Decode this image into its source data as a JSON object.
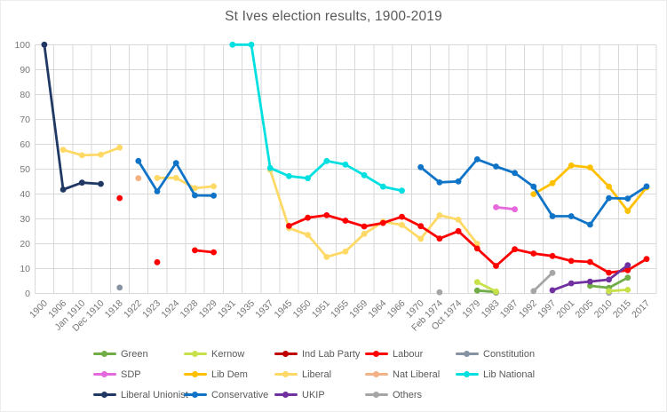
{
  "title": "St Ives election results, 1900-2019",
  "colors": {
    "background": "#FFFFFF",
    "grid": "#D9D9D9",
    "axis_label": "#767676",
    "title_text": "#595959",
    "legend_label": "#595959"
  },
  "chart_data": {
    "type": "line",
    "title": "St Ives election results, 1900-2019",
    "xlabel": "",
    "ylabel": "",
    "grid": true,
    "legend_position": "bottom",
    "marker": "circle",
    "y_axis": {
      "min": 0,
      "max": 100,
      "tick_step": 10,
      "ticks": [
        0,
        10,
        20,
        30,
        40,
        50,
        60,
        70,
        80,
        90,
        100
      ]
    },
    "x_categories": [
      "1900",
      "1906",
      "Jan 1910",
      "Dec 1910",
      "1918",
      "1922",
      "1923",
      "1924",
      "1928",
      "1929",
      "1931",
      "1935",
      "1937",
      "1945",
      "1950",
      "1951",
      "1955",
      "1959",
      "1964",
      "1966",
      "1970",
      "Feb 1974",
      "Oct 1974",
      "1979",
      "1983",
      "1987",
      "1992",
      "1997",
      "2001",
      "2005",
      "2010",
      "2015",
      "2017"
    ],
    "series": [
      {
        "name": "Constitution",
        "color": "#8793A3",
        "points": [
          [
            "1918",
            2.3
          ]
        ]
      },
      {
        "name": "Others",
        "color": "#A6A6A6",
        "points": [
          [
            "Feb 1974",
            0.4
          ],
          [
            "1983",
            0.2
          ],
          [
            "1992",
            0.9
          ],
          [
            "1997",
            8.2
          ],
          [
            "2010",
            0.2
          ]
        ]
      },
      {
        "name": "Nat Liberal",
        "color": "#F4B183",
        "points": [
          [
            "1922",
            46.3
          ]
        ]
      },
      {
        "name": "Ind Lab Party",
        "color": "#C00000",
        "points": []
      },
      {
        "name": "Liberal Unionist",
        "color": "#1F3864",
        "points": [
          [
            "1900",
            100
          ],
          [
            "1906",
            41.7
          ],
          [
            "Jan 1910",
            44.5
          ],
          [
            "Dec 1910",
            44.0
          ]
        ]
      },
      {
        "name": "Liberal",
        "color": "#FFD966",
        "points": [
          [
            "1906",
            57.7
          ],
          [
            "Jan 1910",
            55.5
          ],
          [
            "Dec 1910",
            55.8
          ],
          [
            "1918",
            58.6
          ],
          [
            "1923",
            46.4
          ],
          [
            "1924",
            46.4
          ],
          [
            "1928",
            42.3
          ],
          [
            "1929",
            43.0
          ],
          [
            "1937",
            49.6
          ],
          [
            "1945",
            26.2
          ],
          [
            "1950",
            23.5
          ],
          [
            "1951",
            14.6
          ],
          [
            "1955",
            16.8
          ],
          [
            "1959",
            23.9
          ],
          [
            "1964",
            28.8
          ],
          [
            "1966",
            27.5
          ],
          [
            "1970",
            21.9
          ],
          [
            "Feb 1974",
            31.4
          ],
          [
            "Oct 1974",
            29.6
          ],
          [
            "1979",
            19.9
          ]
        ]
      },
      {
        "name": "SDP",
        "color": "#E668DD",
        "points": [
          [
            "1983",
            34.6
          ],
          [
            "1987",
            33.8
          ]
        ]
      },
      {
        "name": "Lib Dem",
        "color": "#FFC000",
        "points": [
          [
            "1992",
            39.9
          ],
          [
            "1997",
            44.3
          ],
          [
            "2001",
            51.4
          ],
          [
            "2005",
            50.6
          ],
          [
            "2010",
            42.9
          ],
          [
            "2015",
            33.1
          ],
          [
            "2017",
            42.6
          ]
        ]
      },
      {
        "name": "Green",
        "color": "#70AD47",
        "points": [
          [
            "1979",
            1.1
          ],
          [
            "1983",
            0.5
          ],
          [
            "2005",
            3.0
          ],
          [
            "2010",
            2.2
          ],
          [
            "2015",
            6.3
          ]
        ]
      },
      {
        "name": "Kernow",
        "color": "#C8E14B",
        "points": [
          [
            "1979",
            4.5
          ],
          [
            "1983",
            0.7
          ],
          [
            "2010",
            0.9
          ],
          [
            "2015",
            1.4
          ]
        ]
      },
      {
        "name": "Labour",
        "color": "#FF0000",
        "points": [
          [
            "1918",
            38.3
          ],
          [
            "1923",
            12.5
          ],
          [
            "1928",
            17.3
          ],
          [
            "1929",
            16.5
          ],
          [
            "1945",
            27.1
          ],
          [
            "1950",
            30.4
          ],
          [
            "1951",
            31.4
          ],
          [
            "1955",
            29.2
          ],
          [
            "1959",
            26.9
          ],
          [
            "1964",
            28.3
          ],
          [
            "1966",
            30.8
          ],
          [
            "1970",
            27.0
          ],
          [
            "Feb 1974",
            22.0
          ],
          [
            "Oct 1974",
            25.0
          ],
          [
            "1979",
            18.0
          ],
          [
            "1983",
            11.0
          ],
          [
            "1987",
            17.7
          ],
          [
            "1992",
            16.0
          ],
          [
            "1997",
            15.0
          ],
          [
            "2001",
            13.0
          ],
          [
            "2005",
            12.6
          ],
          [
            "2010",
            8.3
          ],
          [
            "2015",
            9.3
          ],
          [
            "2017",
            13.8
          ]
        ]
      },
      {
        "name": "UKIP",
        "color": "#7030A0",
        "points": [
          [
            "1997",
            1.2
          ],
          [
            "2001",
            4.0
          ],
          [
            "2005",
            4.7
          ],
          [
            "2010",
            5.5
          ],
          [
            "2015",
            11.3
          ]
        ]
      },
      {
        "name": "Lib National",
        "color": "#00E0E0",
        "points": [
          [
            "1931",
            100
          ],
          [
            "1935",
            100
          ],
          [
            "1937",
            50.4
          ],
          [
            "1945",
            47.1
          ],
          [
            "1950",
            46.3
          ],
          [
            "1951",
            53.2
          ],
          [
            "1955",
            51.8
          ],
          [
            "1959",
            47.5
          ],
          [
            "1964",
            42.9
          ],
          [
            "1966",
            41.3
          ]
        ]
      },
      {
        "name": "Conservative",
        "color": "#0F74C8",
        "points": [
          [
            "1922",
            53.2
          ],
          [
            "1923",
            41.0
          ],
          [
            "1924",
            52.4
          ],
          [
            "1928",
            39.4
          ],
          [
            "1929",
            39.3
          ],
          [
            "1970",
            50.7
          ],
          [
            "Feb 1974",
            44.6
          ],
          [
            "Oct 1974",
            45.0
          ],
          [
            "1979",
            53.9
          ],
          [
            "1983",
            51.0
          ],
          [
            "1987",
            48.4
          ],
          [
            "1992",
            42.9
          ],
          [
            "1997",
            31.0
          ],
          [
            "2001",
            31.0
          ],
          [
            "2005",
            27.6
          ],
          [
            "2010",
            38.3
          ],
          [
            "2015",
            38.1
          ],
          [
            "2017",
            43.0
          ]
        ]
      }
    ],
    "legend_rows": [
      [
        "Green",
        "Kernow",
        "Ind Lab Party",
        "Labour",
        "Constitution"
      ],
      [
        "SDP",
        "Lib Dem",
        "Liberal",
        "Nat Liberal",
        "Lib National"
      ],
      [
        "Liberal Unionist",
        "Conservative",
        "UKIP",
        "Others"
      ]
    ]
  }
}
